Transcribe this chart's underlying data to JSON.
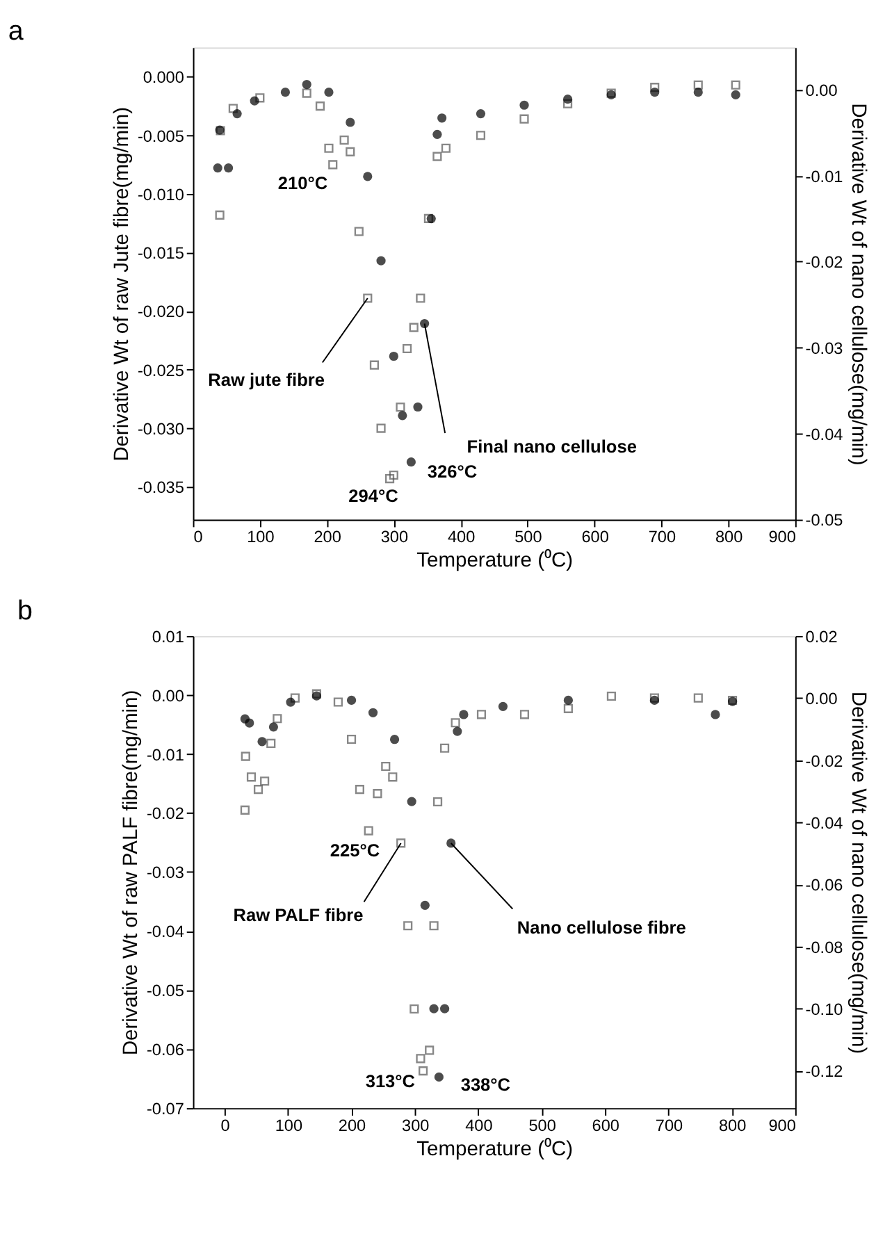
{
  "chart_data": [
    {
      "type": "scatter",
      "title": "a",
      "xlabel": "Temperature (⁰C)",
      "ylabel": "Derivative Wt  of raw Jute fibre(mg/min)",
      "y2label": "Derivative Wt  of nano cellulose(mg/min)",
      "xlim": [
        0,
        900
      ],
      "xticks": [
        0,
        100,
        200,
        300,
        400,
        500,
        600,
        700,
        800,
        900
      ],
      "ylim": [
        -0.0378,
        0.0025
      ],
      "yticks": [
        {
          "value": 0,
          "label": "0.000"
        },
        {
          "value": -0.005,
          "label": "-0.005"
        },
        {
          "value": -0.01,
          "label": "-0.010"
        },
        {
          "value": -0.015,
          "label": "-0.015"
        },
        {
          "value": -0.02,
          "label": "-0.020"
        },
        {
          "value": -0.025,
          "label": "-0.025"
        },
        {
          "value": -0.03,
          "label": "-0.030"
        },
        {
          "value": -0.035,
          "label": "-0.035"
        }
      ],
      "y2lim": [
        -0.05,
        0.0049
      ],
      "y2ticks": [
        {
          "value": 0,
          "label": "0.00"
        },
        {
          "value": -0.01,
          "label": "-0.01"
        },
        {
          "value": -0.02,
          "label": "-0.02"
        },
        {
          "value": -0.03,
          "label": "-0.03"
        },
        {
          "value": -0.04,
          "label": "-0.04"
        },
        {
          "value": -0.05,
          "label": "-0.05"
        }
      ],
      "grid": false,
      "series": [
        {
          "name": "Raw jute fibre",
          "color": "#555555",
          "marker": "square",
          "x": [
            40,
            41,
            60,
            100,
            170,
            190,
            203,
            209,
            226,
            235,
            248,
            261,
            271,
            281,
            294,
            300,
            310,
            320,
            330,
            340,
            352,
            365,
            378,
            430,
            495,
            560,
            625,
            690,
            755,
            811
          ],
          "values": [
            -0.0118,
            -0.0046,
            -0.0027,
            -0.0018,
            -0.0014,
            -0.0025,
            -0.0061,
            -0.0075,
            -0.0054,
            -0.0064,
            -0.0132,
            -0.0189,
            -0.0246,
            -0.03,
            -0.0343,
            -0.034,
            -0.0282,
            -0.0232,
            -0.0214,
            -0.0189,
            -0.0121,
            -0.0068,
            -0.0061,
            -0.005,
            -0.0036,
            -0.0023,
            -0.0014,
            -0.0009,
            -0.0007,
            -0.0007
          ]
        },
        {
          "name": "Final nano cellulose",
          "color": "#000000",
          "marker": "circle",
          "axis": "y2",
          "x": [
            37,
            40,
            53,
            66,
            92,
            138,
            170,
            203,
            235,
            261,
            281,
            300,
            313,
            326,
            336,
            346,
            356,
            365,
            372,
            430,
            495,
            560,
            625,
            690,
            755,
            811
          ],
          "values": [
            -0.0091,
            -0.0047,
            -0.0091,
            -0.0028,
            -0.0013,
            -0.0003,
            0.0006,
            -0.0003,
            -0.0038,
            -0.0101,
            -0.0199,
            -0.031,
            -0.0379,
            -0.0433,
            -0.0369,
            -0.0272,
            -0.015,
            -0.0052,
            -0.0033,
            -0.0028,
            -0.0018,
            -0.0011,
            -0.0006,
            -0.0003,
            -0.0003,
            -0.0006
          ]
        }
      ],
      "annotations": [
        {
          "text": "210°C",
          "x": 209,
          "y": -0.0075
        },
        {
          "text": "294°C",
          "x": 294,
          "y": -0.0343
        },
        {
          "text": "326°C",
          "x": 326,
          "y": -0.0329
        }
      ]
    },
    {
      "type": "scatter",
      "title": "b",
      "xlabel": "Temperature (⁰C)",
      "ylabel": "Derivative Wt  of raw PALF fibre(mg/min)",
      "y2label": "Derivative Wt  of nano cellulose(mg/min)",
      "xlim": [
        -50,
        900
      ],
      "xticks": [
        0,
        100,
        200,
        300,
        400,
        500,
        600,
        700,
        800,
        900
      ],
      "ylim": [
        -0.07,
        0.01
      ],
      "yticks": [
        {
          "value": 0.01,
          "label": "0.01"
        },
        {
          "value": 0,
          "label": "0.00"
        },
        {
          "value": -0.01,
          "label": "-0.01"
        },
        {
          "value": -0.02,
          "label": "-0.02"
        },
        {
          "value": -0.03,
          "label": "-0.03"
        },
        {
          "value": -0.04,
          "label": "-0.04"
        },
        {
          "value": -0.05,
          "label": "-0.05"
        },
        {
          "value": -0.06,
          "label": "-0.06"
        },
        {
          "value": -0.07,
          "label": "-0.07"
        }
      ],
      "y2lim": [
        -0.132,
        0.02
      ],
      "y2ticks": [
        {
          "value": 0.02,
          "label": "0.02"
        },
        {
          "value": 0,
          "label": "0.00"
        },
        {
          "value": -0.02,
          "label": "-0.02"
        },
        {
          "value": -0.04,
          "label": "-0.04"
        },
        {
          "value": -0.06,
          "label": "-0.06"
        },
        {
          "value": -0.08,
          "label": "-0.08"
        },
        {
          "value": -0.1,
          "label": "-0.10"
        },
        {
          "value": -0.12,
          "label": "-0.12"
        }
      ],
      "grid": false,
      "series": [
        {
          "name": "Raw PALF fibre",
          "color": "#555555",
          "marker": "square",
          "x": [
            32,
            33,
            42,
            53,
            63,
            73,
            83,
            111,
            145,
            179,
            200,
            213,
            227,
            241,
            254,
            265,
            278,
            289,
            299,
            309,
            313,
            323,
            330,
            336,
            347,
            364,
            405,
            473,
            542,
            610,
            678,
            747,
            801
          ],
          "values": [
            -0.0195,
            -0.0104,
            -0.0139,
            -0.016,
            -0.0146,
            -0.0082,
            -0.004,
            -0.0005,
            0.0002,
            -0.0012,
            -0.0075,
            -0.016,
            -0.023,
            -0.0167,
            -0.0121,
            -0.0139,
            -0.0251,
            -0.0391,
            -0.0532,
            -0.0616,
            -0.0637,
            -0.0602,
            -0.0391,
            -0.0181,
            -0.009,
            -0.0047,
            -0.0033,
            -0.0033,
            -0.0023,
            -0.0002,
            -0.0005,
            -0.0005,
            -0.0009
          ]
        },
        {
          "name": "Nano cellulose fibre",
          "color": "#000000",
          "marker": "circle",
          "axis": "y2",
          "x": [
            32,
            39,
            59,
            77,
            104,
            145,
            200,
            234,
            268,
            295,
            316,
            330,
            338,
            347,
            357,
            367,
            377,
            439,
            542,
            678,
            774,
            801
          ],
          "values": [
            -0.0067,
            -0.008,
            -0.014,
            -0.0093,
            -0.0013,
            0.0007,
            -0.0007,
            -0.0047,
            -0.0133,
            -0.0333,
            -0.0667,
            -0.1,
            -0.122,
            -0.1,
            -0.0467,
            -0.0107,
            -0.0053,
            -0.0027,
            -0.0007,
            -0.0007,
            -0.0053,
            -0.0011
          ]
        }
      ],
      "annotations": [
        {
          "text": "225°C",
          "x": 227,
          "y": -0.023
        },
        {
          "text": "313°C",
          "x": 313,
          "y": -0.0637
        },
        {
          "text": "338°C",
          "x": 338,
          "y": -0.0647
        }
      ]
    }
  ]
}
